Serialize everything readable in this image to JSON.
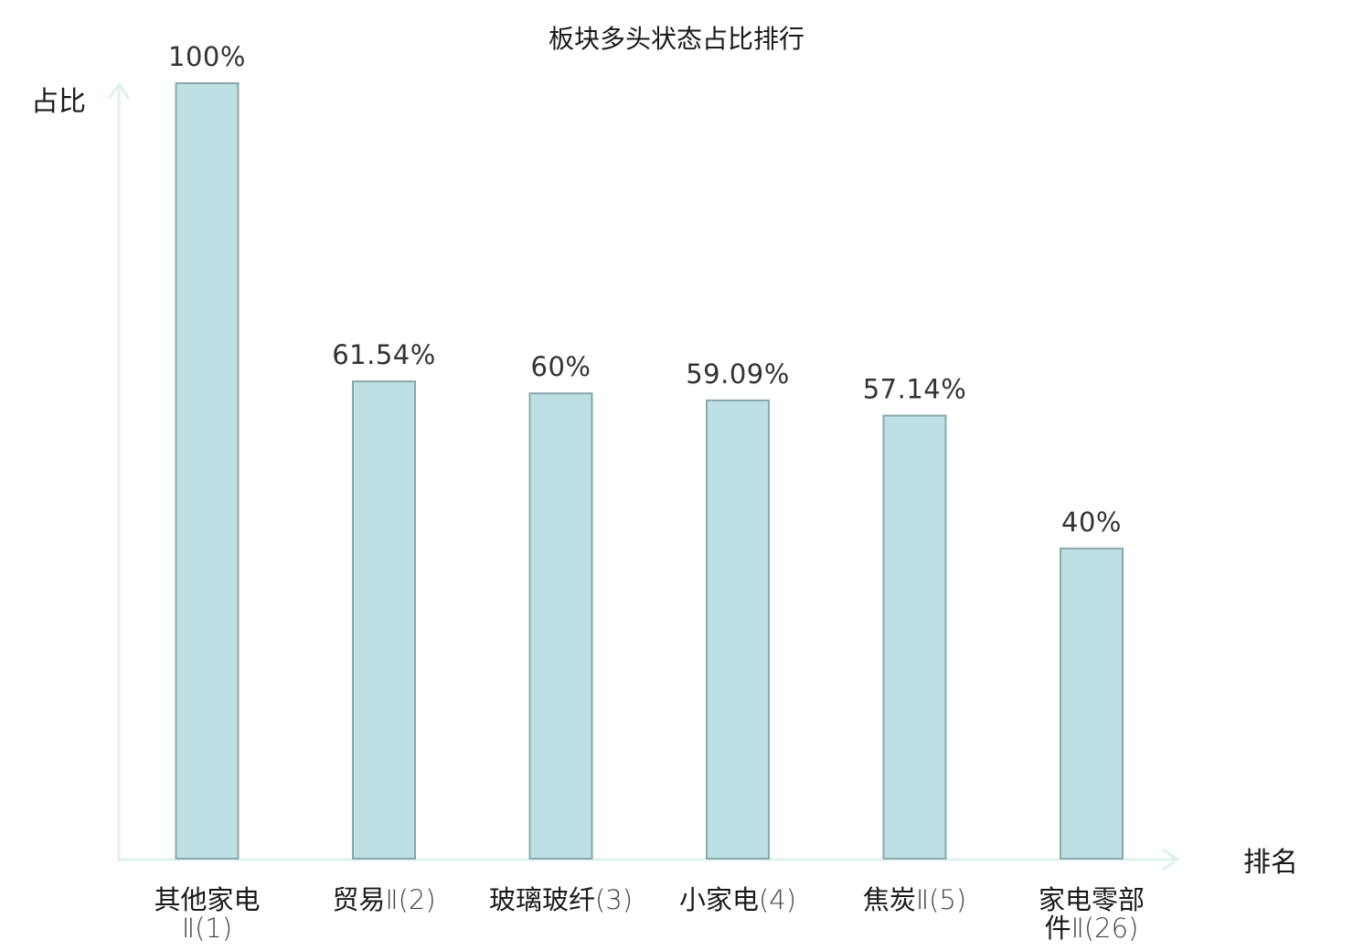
{
  "chart_data": {
    "type": "bar",
    "title": "板块多头状态占比排行",
    "ylabel": "占比",
    "xlabel": "排名",
    "ylim": [
      0,
      100
    ],
    "unit": "%",
    "categories": [
      {
        "line1": "其他家电",
        "line2": "Ⅱ(1)",
        "highlight": false
      },
      {
        "line1": "贸易Ⅱ(2)",
        "line2": "",
        "highlight": false
      },
      {
        "line1": "玻璃玻纤(3)",
        "line2": "",
        "highlight": false
      },
      {
        "line1": "小家电(4)",
        "line2": "",
        "highlight": false
      },
      {
        "line1": "焦炭Ⅱ(5)",
        "line2": "",
        "highlight": false
      },
      {
        "line1": "家电零部",
        "line2": "件Ⅱ(26)",
        "highlight": true
      }
    ],
    "values": [
      100,
      61.54,
      60,
      59.09,
      57.14,
      40
    ],
    "value_labels": [
      "100%",
      "61.54%",
      "60%",
      "59.09%",
      "57.14%",
      "40%"
    ],
    "colors": {
      "bar_fill": "#bde0e3",
      "bar_stroke": "#8aa8ab",
      "axis": "#dff2ef",
      "highlight_text": "#e01b1b",
      "normal_text": "#1a1a1a"
    }
  }
}
